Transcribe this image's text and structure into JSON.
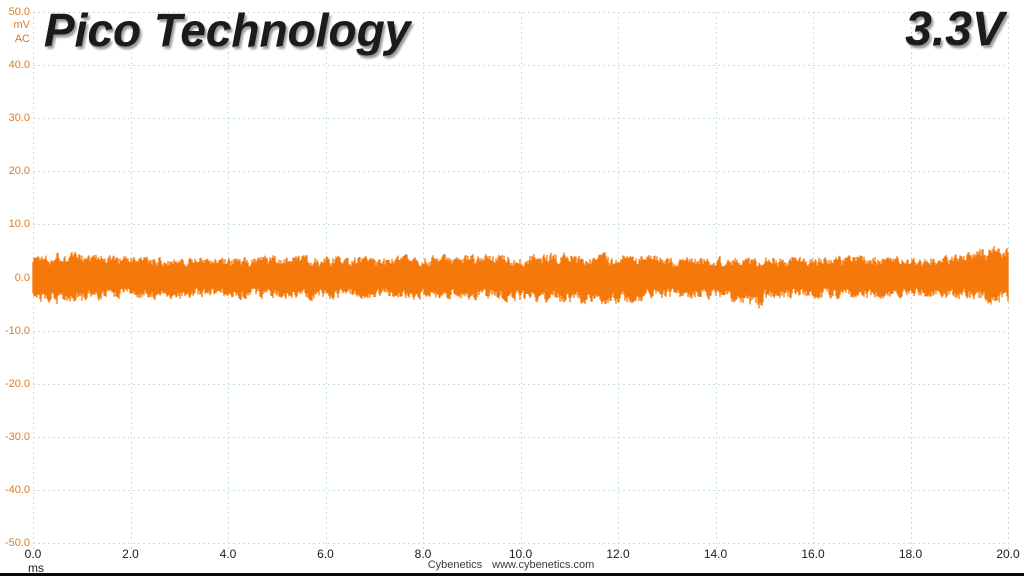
{
  "header": {
    "title": "Pico Technology",
    "rail_label": "3.3V"
  },
  "axes": {
    "y_unit_line1": "mV",
    "y_unit_line2": "AC",
    "x_unit": "ms"
  },
  "footer": {
    "brand": "Cybenetics",
    "website": "www.cybenetics.com"
  },
  "colors": {
    "waveform": "#F5780A",
    "axis_label_orange": "#DD7B21",
    "grid": "#C4E1DF",
    "x_label": "#1B1B1B",
    "title_text": "#1B1B1B",
    "background": "#FFFFFF",
    "bottom_bar": "#0A0A0A"
  },
  "chart_data": {
    "type": "line",
    "signal": "psu-ripple-noise-trace",
    "title": "Pico Technology",
    "channel_label": "3.3V",
    "coupling": "AC",
    "xlabel": "ms",
    "ylabel": "mV AC",
    "xlim": [
      0,
      20
    ],
    "ylim": [
      -50,
      50
    ],
    "x_tick_step": 2,
    "y_tick_step": 10,
    "grid": true,
    "legend": "none",
    "y_ticks": [
      "50.0",
      "40.0",
      "30.0",
      "20.0",
      "10.0",
      "0.0",
      "-10.0",
      "-20.0",
      "-30.0",
      "-40.0",
      "-50.0"
    ],
    "x_ticks": [
      "0.0",
      "2.0",
      "4.0",
      "6.0",
      "8.0",
      "10.0",
      "12.0",
      "14.0",
      "16.0",
      "18.0",
      "20.0"
    ],
    "envelope": {
      "t_ms": [
        0,
        0.5,
        1,
        2,
        3,
        4,
        5,
        6,
        7,
        8,
        9,
        10,
        10.5,
        11,
        12,
        13,
        14,
        14.9,
        15.1,
        16,
        17,
        18,
        19,
        19.6,
        20
      ],
      "max_mV": [
        4.9,
        5.7,
        5.2,
        4.4,
        4.5,
        4.3,
        4.6,
        4.5,
        4.3,
        4.6,
        4.8,
        5.0,
        5.3,
        5.2,
        4.9,
        4.5,
        4.4,
        4.6,
        4.6,
        4.5,
        4.6,
        4.4,
        5.0,
        6.6,
        6.2
      ],
      "min_mV": [
        -4.9,
        -5.8,
        -5.3,
        -4.4,
        -4.4,
        -4.3,
        -4.6,
        -4.7,
        -4.4,
        -4.5,
        -4.7,
        -5.1,
        -5.3,
        -5.4,
        -5.6,
        -4.5,
        -4.4,
        -6.9,
        -4.8,
        -4.6,
        -4.5,
        -4.3,
        -4.7,
        -6.0,
        -5.6
      ],
      "core_mV": 2.1
    },
    "noise_seed": 1337
  }
}
